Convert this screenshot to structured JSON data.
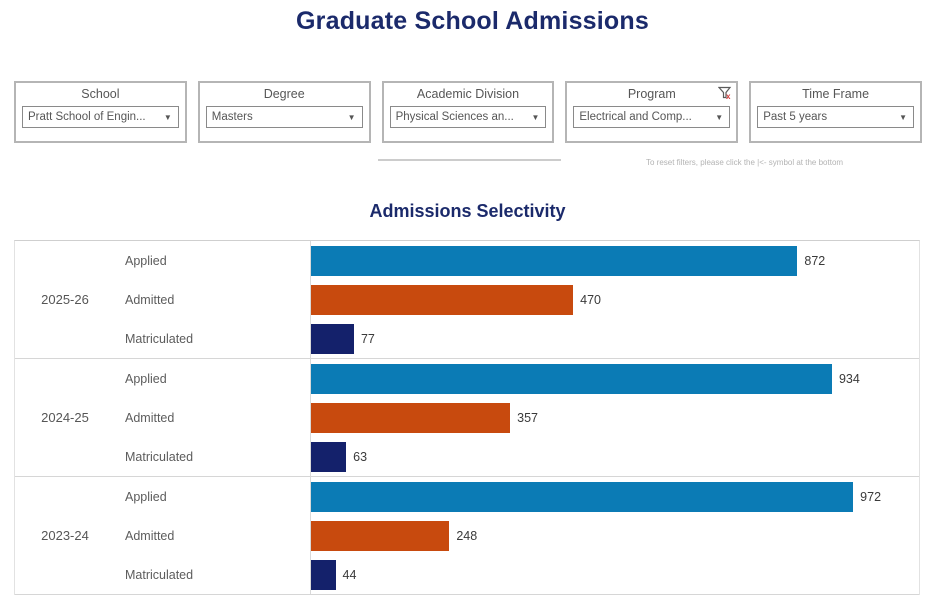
{
  "page_title": "Graduate School Admissions",
  "colors": {
    "title_navy": "#1b2a6b",
    "applied_blue": "#0b7bb5",
    "admitted_orange": "#c84a0e",
    "matriculated_navy": "#14216b"
  },
  "icons": {
    "dropdown_caret": "▼",
    "filter_clear_x": "x"
  },
  "filters": [
    {
      "label": "School",
      "value": "Pratt School of Engin..."
    },
    {
      "label": "Degree",
      "value": "Masters"
    },
    {
      "label": "Academic Division",
      "value": "Physical Sciences an..."
    },
    {
      "label": "Program",
      "value": "Electrical and Comp..."
    },
    {
      "label": "Time Frame",
      "value": "Past 5 years"
    }
  ],
  "reset_note": "To reset filters, please click the |<- symbol at the bottom",
  "chart_data": {
    "type": "bar",
    "orientation": "horizontal",
    "title": "Admissions Selectivity",
    "categories": [
      "2025-26",
      "2024-25",
      "2023-24"
    ],
    "series": [
      {
        "name": "Applied",
        "color": "#0b7bb5",
        "values": [
          872,
          934,
          972
        ]
      },
      {
        "name": "Admitted",
        "color": "#c84a0e",
        "values": [
          470,
          357,
          248
        ]
      },
      {
        "name": "Matriculated",
        "color": "#14216b",
        "values": [
          77,
          63,
          44
        ]
      }
    ],
    "xlim": [
      0,
      1090
    ],
    "value_labels": true,
    "legend": "none",
    "grid": false
  }
}
